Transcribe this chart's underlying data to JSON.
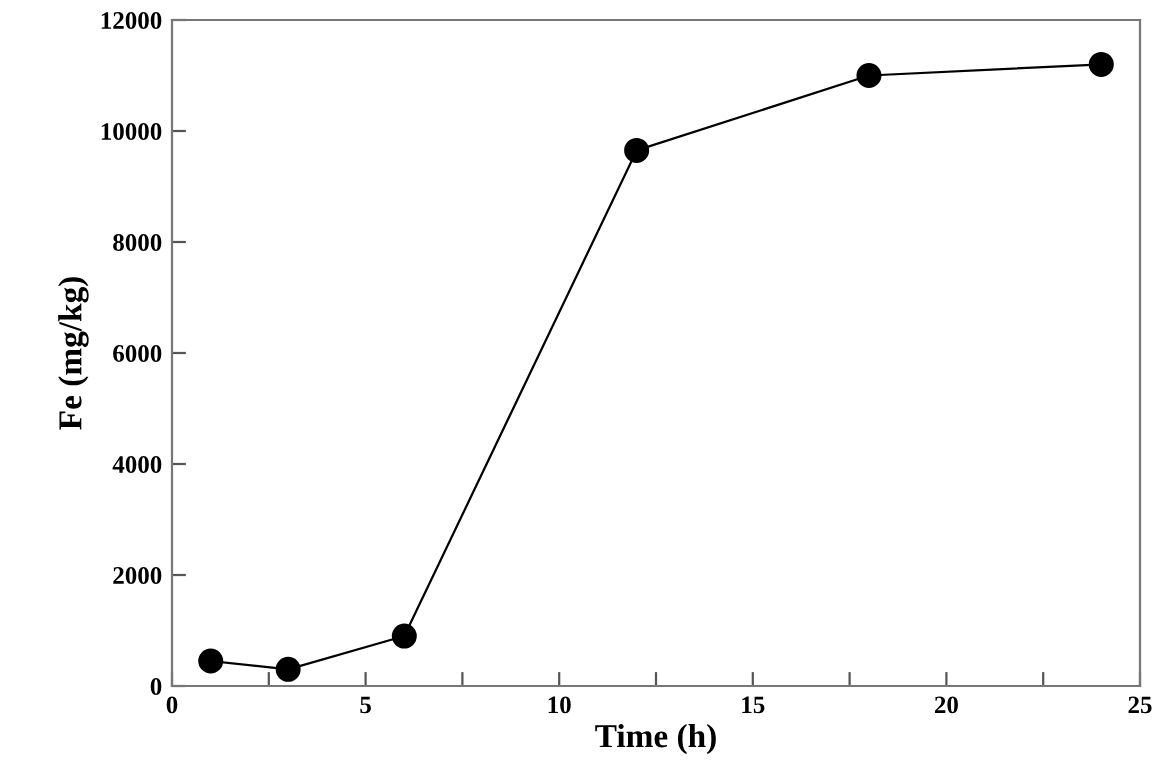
{
  "chart_data": {
    "type": "line",
    "xlabel": "Time (h)",
    "ylabel": "Fe (mg/kg)",
    "x": [
      1,
      3,
      6,
      12,
      18,
      24
    ],
    "series": [
      {
        "color": "#000000",
        "values": [
          450,
          300,
          900,
          9650,
          11000,
          11200
        ]
      }
    ],
    "marker": "circle",
    "line_style": "solid",
    "grid": false,
    "xlim": [
      0,
      25
    ],
    "xticks": [
      0,
      {
        "value": 2.5,
        "label": null
      },
      5,
      {
        "value": 7.5,
        "label": null
      },
      10,
      {
        "value": 12.5,
        "label": null
      },
      15,
      {
        "value": 17.5,
        "label": null
      },
      20,
      {
        "value": 22.5,
        "label": null
      },
      25
    ],
    "ylim": [
      0,
      12000
    ],
    "yticks": [
      0,
      2000,
      4000,
      6000,
      8000,
      10000,
      12000
    ]
  }
}
